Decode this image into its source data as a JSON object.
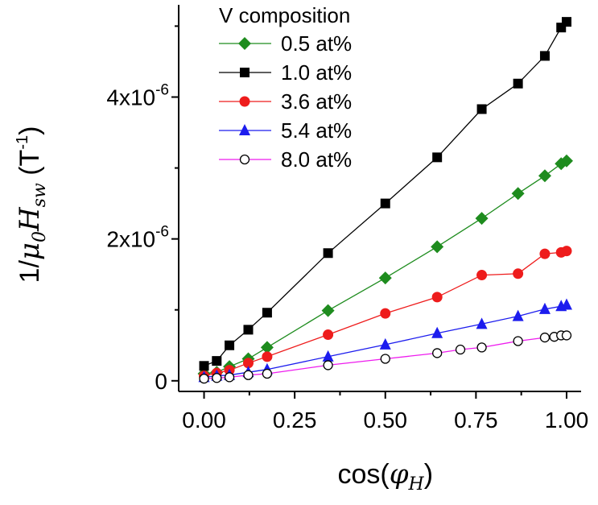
{
  "chart_data": {
    "type": "line",
    "xlabel": "cos(φH)",
    "ylabel": "1/μ0Hsw (T-1)",
    "xlim": [
      -0.07,
      1.04
    ],
    "ylim": [
      -1.5e-07,
      5.3e-06
    ],
    "x_ticks": [
      {
        "value": 0.0,
        "label": "0.00"
      },
      {
        "value": 0.25,
        "label": "0.25"
      },
      {
        "value": 0.5,
        "label": "0.50"
      },
      {
        "value": 0.75,
        "label": "0.75"
      },
      {
        "value": 1.0,
        "label": "1.00"
      }
    ],
    "y_ticks": [
      {
        "value": 0,
        "label": "0",
        "exp": ""
      },
      {
        "value": 2e-06,
        "label": "2x10",
        "exp": "-6"
      },
      {
        "value": 4e-06,
        "label": "4x10",
        "exp": "-6"
      }
    ],
    "legend": {
      "title": "V composition",
      "placement": "top-right"
    },
    "series": [
      {
        "name": "0.5 at%",
        "color": "#1e8c1e",
        "marker": "diamond",
        "x": [
          0.0,
          0.035,
          0.07,
          0.122,
          0.174,
          0.342,
          0.5,
          0.643,
          0.766,
          0.866,
          0.94,
          0.985,
          1.0
        ],
        "y": [
          1e-07,
          1.2e-07,
          2e-07,
          3.1e-07,
          4.7e-07,
          9.9e-07,
          1.45e-06,
          1.89e-06,
          2.29e-06,
          2.64e-06,
          2.89e-06,
          3.06e-06,
          3.1e-06
        ]
      },
      {
        "name": "1.0 at%",
        "color": "#000000",
        "marker": "square",
        "x": [
          0.0,
          0.035,
          0.07,
          0.122,
          0.174,
          0.342,
          0.5,
          0.643,
          0.766,
          0.866,
          0.94,
          0.985,
          1.0
        ],
        "y": [
          2.1e-07,
          2.8e-07,
          5e-07,
          7.2e-07,
          9.6e-07,
          1.8e-06,
          2.5e-06,
          3.15e-06,
          3.83e-06,
          4.19e-06,
          4.58e-06,
          4.98e-06,
          5.06e-06
        ]
      },
      {
        "name": "3.6 at%",
        "color": "#ee1c1c",
        "marker": "circle",
        "x": [
          0.0,
          0.035,
          0.07,
          0.122,
          0.174,
          0.342,
          0.5,
          0.643,
          0.766,
          0.866,
          0.94,
          0.985,
          1.0
        ],
        "y": [
          7e-08,
          1.1e-07,
          1.5e-07,
          2.5e-07,
          3.4e-07,
          6.5e-07,
          9.5e-07,
          1.18e-06,
          1.49e-06,
          1.51e-06,
          1.79e-06,
          1.81e-06,
          1.83e-06
        ]
      },
      {
        "name": "5.4 at%",
        "color": "#1c1cee",
        "marker": "triangle",
        "x": [
          0.0,
          0.035,
          0.07,
          0.122,
          0.174,
          0.342,
          0.5,
          0.643,
          0.766,
          0.866,
          0.94,
          0.985,
          1.0
        ],
        "y": [
          5e-08,
          7e-08,
          8e-08,
          1.2e-07,
          1.6e-07,
          3.4e-07,
          5.1e-07,
          6.7e-07,
          8e-07,
          9.1e-07,
          1.01e-06,
          1.05e-06,
          1.07e-06
        ]
      },
      {
        "name": "8.0 at%",
        "color": "#ee1cee",
        "marker": "open-circle",
        "x": [
          0.0,
          0.035,
          0.07,
          0.122,
          0.174,
          0.342,
          0.5,
          0.643,
          0.707,
          0.766,
          0.866,
          0.94,
          0.966,
          0.985,
          1.0
        ],
        "y": [
          3e-08,
          4e-08,
          5e-08,
          8e-08,
          1e-07,
          2.2e-07,
          3.1e-07,
          3.9e-07,
          4.4e-07,
          4.7e-07,
          5.6e-07,
          6.1e-07,
          6.2e-07,
          6.4e-07,
          6.4e-07
        ]
      }
    ]
  }
}
